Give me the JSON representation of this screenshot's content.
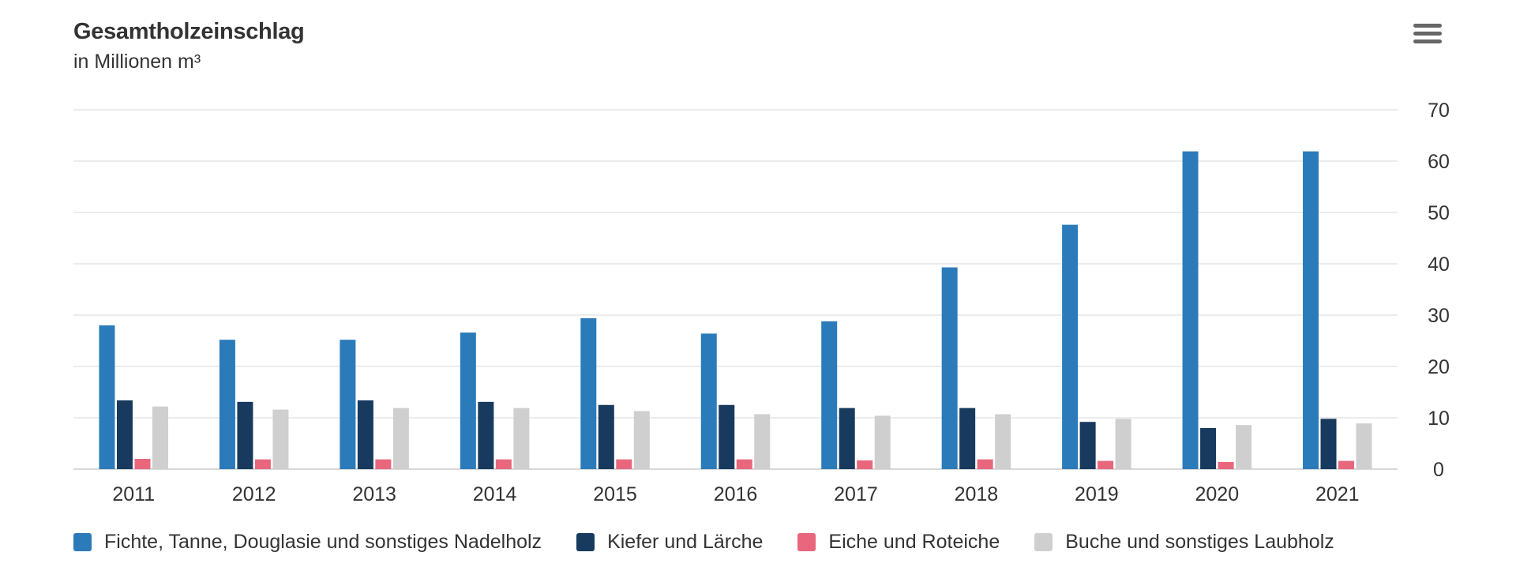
{
  "header": {
    "title": "Gesamtholzeinschlag",
    "subtitle": "in Millionen m³",
    "menu_icon": "hamburger-menu-icon"
  },
  "chart_data": {
    "type": "bar",
    "title": "Gesamtholzeinschlag",
    "subtitle": "in Millionen m³",
    "categories": [
      "2011",
      "2012",
      "2013",
      "2014",
      "2015",
      "2016",
      "2017",
      "2018",
      "2019",
      "2020",
      "2021"
    ],
    "series": [
      {
        "name": "Fichte, Tanne, Douglasie und sonstiges Nadelholz",
        "color": "#2b7bba",
        "values": [
          28.0,
          25.2,
          25.2,
          26.6,
          29.4,
          26.4,
          28.8,
          39.3,
          47.6,
          61.9,
          61.9
        ]
      },
      {
        "name": "Kiefer und Lärche",
        "color": "#173a5e",
        "values": [
          13.4,
          13.1,
          13.4,
          13.1,
          12.5,
          12.5,
          11.9,
          11.9,
          9.2,
          8.0,
          9.8
        ]
      },
      {
        "name": "Eiche und Roteiche",
        "color": "#e8677c",
        "values": [
          2.0,
          1.9,
          1.9,
          1.9,
          1.9,
          1.9,
          1.7,
          1.9,
          1.6,
          1.4,
          1.6
        ]
      },
      {
        "name": "Buche und sonstiges Laubholz",
        "color": "#cfcfcf",
        "values": [
          12.2,
          11.6,
          11.9,
          11.9,
          11.3,
          10.7,
          10.4,
          10.7,
          9.8,
          8.6,
          8.9
        ]
      }
    ],
    "yaxis": {
      "position": "right",
      "ticks": [
        0,
        10,
        20,
        30,
        40,
        50,
        60,
        70
      ],
      "ylim": [
        0,
        70
      ]
    },
    "grid": true,
    "legend": "bottom"
  }
}
